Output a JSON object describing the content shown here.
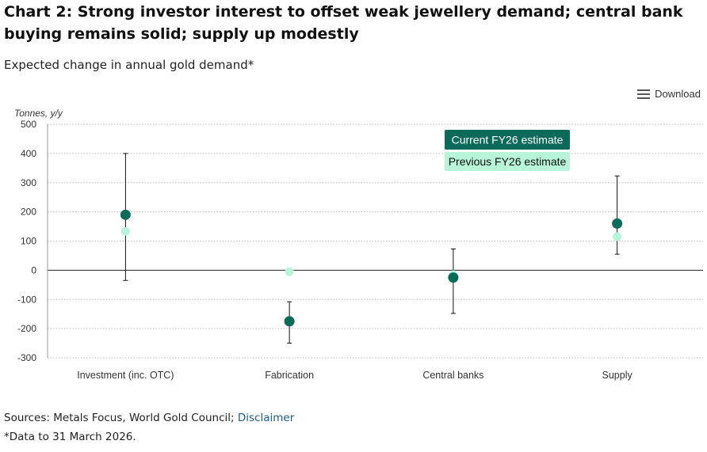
{
  "header": {
    "title": "Chart 2: Strong investor interest to offset weak jewellery demand; central bank buying remains solid; supply up modestly",
    "subtitle": "Expected change in annual gold demand*"
  },
  "toolbar": {
    "download_label": "Download",
    "download_icon": "hamburger-menu-icon"
  },
  "chart_data": {
    "type": "scatter",
    "ylabel": "Tonnes, y/y",
    "ylim": [
      -300,
      500
    ],
    "yticks": [
      500,
      400,
      300,
      200,
      100,
      0,
      -100,
      -200,
      -300
    ],
    "categories": [
      "Investment (inc. OTC)",
      "Fabrication",
      "Central banks",
      "Supply"
    ],
    "grid": true,
    "legend_position": "top-right",
    "series": [
      {
        "name": "Current FY26 estimate",
        "color": "#0b6a5a",
        "values": [
          190,
          -175,
          -25,
          160
        ]
      },
      {
        "name": "Previous FY26 estimate",
        "color": "#b8f5d8",
        "values": [
          133,
          -5,
          -15,
          115
        ]
      }
    ],
    "error_bars": [
      {
        "low": -35,
        "high": 400
      },
      {
        "low": -250,
        "high": -108
      },
      {
        "low": -148,
        "high": 73
      },
      {
        "low": 55,
        "high": 323
      }
    ]
  },
  "footer": {
    "source_prefix": "Sources: Metals Focus, World Gold Council; ",
    "disclaimer_link": "Disclaimer",
    "footnote": "*Data to 31 March 2026."
  }
}
